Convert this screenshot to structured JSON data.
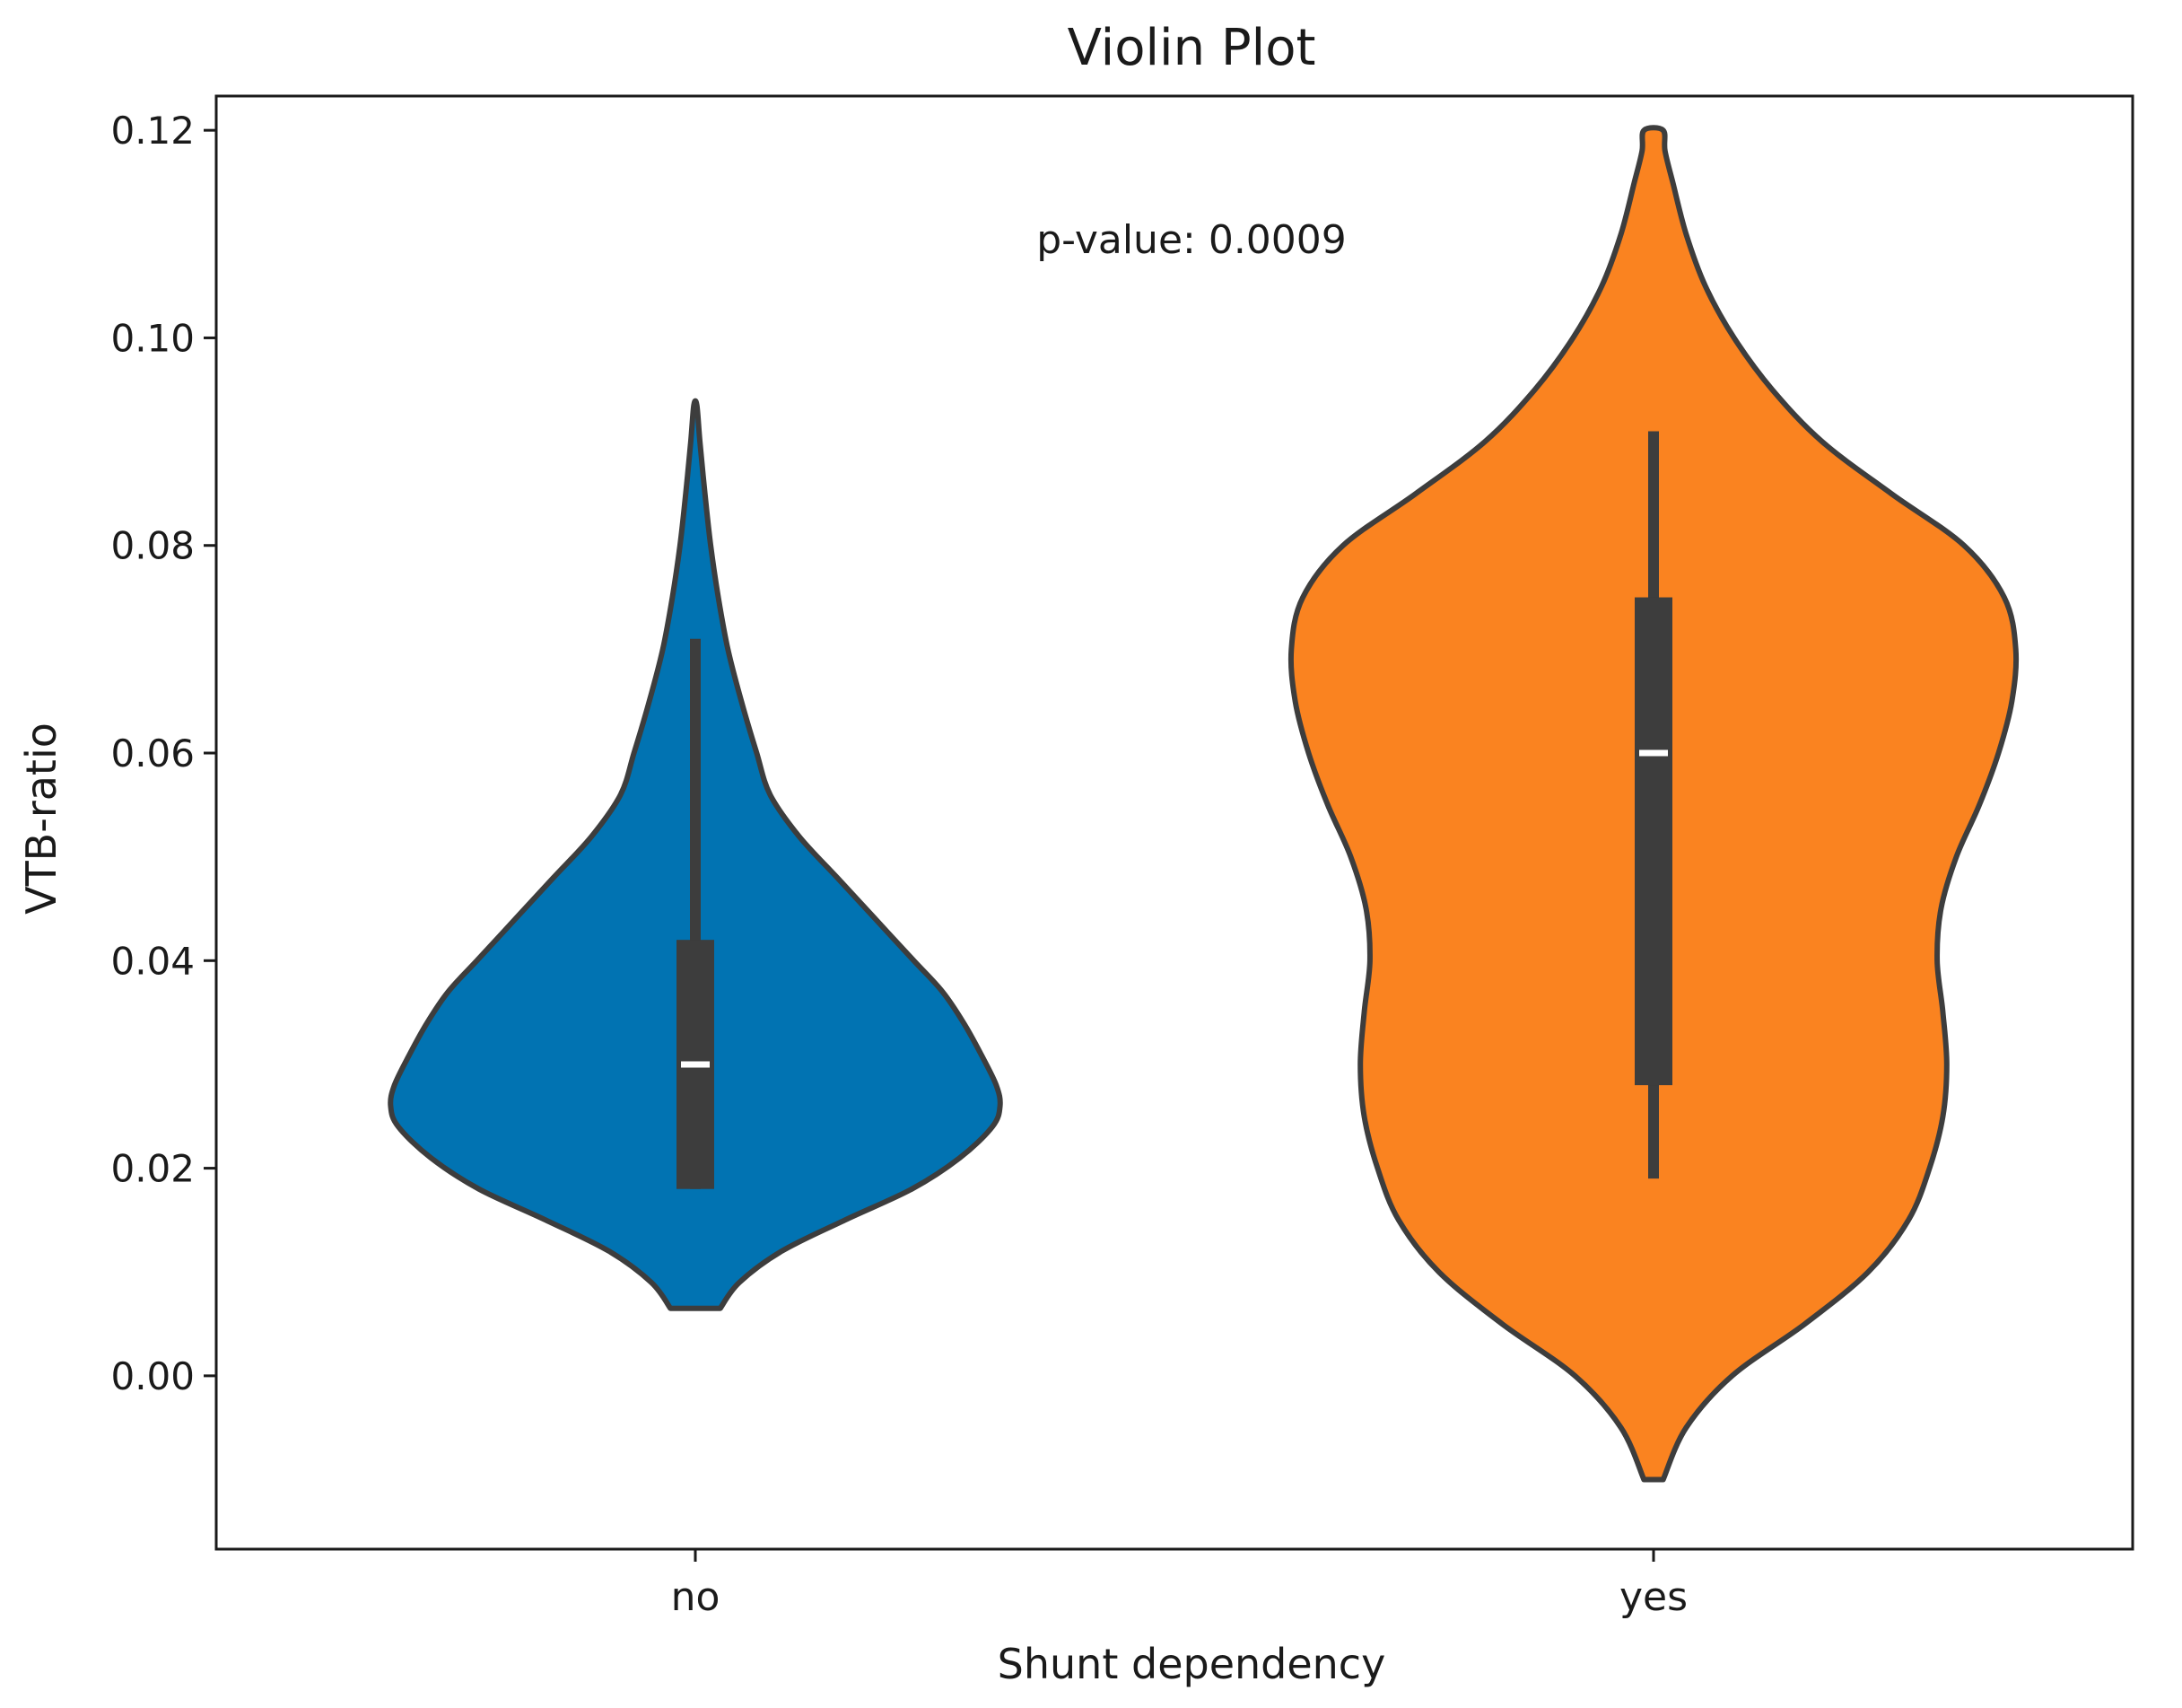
{
  "chart_data": {
    "type": "violin",
    "title": "Violin Plot",
    "xlabel": "Shunt dependency",
    "ylabel": "VTB-ratio",
    "annotation": "p-value: 0.0009",
    "ylim": [
      -0.0167,
      0.1233
    ],
    "yticks": [
      "0.00",
      "0.02",
      "0.04",
      "0.06",
      "0.08",
      "0.10",
      "0.12"
    ],
    "categories": [
      "no",
      "yes"
    ],
    "grid": false,
    "colors": {
      "no": "#0173b2",
      "yes": "#fa8320",
      "outline": "#3d3d3d",
      "median": "#ffffff"
    },
    "series": [
      {
        "category": "no",
        "min": 0.0065,
        "max": 0.0935,
        "q1": 0.018,
        "median": 0.03,
        "q3": 0.042,
        "whisker_low": 0.018,
        "whisker_high": 0.071,
        "density": [
          [
            0.0065,
            0.065
          ],
          [
            0.009,
            0.115
          ],
          [
            0.012,
            0.225
          ],
          [
            0.015,
            0.39
          ],
          [
            0.018,
            0.565
          ],
          [
            0.021,
            0.69
          ],
          [
            0.024,
            0.775
          ],
          [
            0.026,
            0.795
          ],
          [
            0.028,
            0.785
          ],
          [
            0.031,
            0.745
          ],
          [
            0.034,
            0.7
          ],
          [
            0.037,
            0.645
          ],
          [
            0.04,
            0.57
          ],
          [
            0.044,
            0.47
          ],
          [
            0.048,
            0.37
          ],
          [
            0.052,
            0.27
          ],
          [
            0.056,
            0.195
          ],
          [
            0.06,
            0.16
          ],
          [
            0.065,
            0.12
          ],
          [
            0.07,
            0.085
          ],
          [
            0.075,
            0.06
          ],
          [
            0.08,
            0.04
          ],
          [
            0.085,
            0.025
          ],
          [
            0.09,
            0.012
          ],
          [
            0.0935,
            0.004
          ]
        ]
      },
      {
        "category": "yes",
        "min": -0.01,
        "max": 0.12,
        "q1": 0.028,
        "median": 0.06,
        "q3": 0.075,
        "whisker_low": 0.019,
        "whisker_high": 0.091,
        "density": [
          [
            -0.01,
            0.025
          ],
          [
            -0.005,
            0.085
          ],
          [
            0.0,
            0.205
          ],
          [
            0.005,
            0.395
          ],
          [
            0.01,
            0.56
          ],
          [
            0.015,
            0.665
          ],
          [
            0.02,
            0.72
          ],
          [
            0.025,
            0.755
          ],
          [
            0.03,
            0.765
          ],
          [
            0.035,
            0.755
          ],
          [
            0.04,
            0.74
          ],
          [
            0.045,
            0.75
          ],
          [
            0.05,
            0.79
          ],
          [
            0.055,
            0.85
          ],
          [
            0.06,
            0.9
          ],
          [
            0.065,
            0.935
          ],
          [
            0.07,
            0.945
          ],
          [
            0.075,
            0.915
          ],
          [
            0.08,
            0.81
          ],
          [
            0.085,
            0.62
          ],
          [
            0.09,
            0.44
          ],
          [
            0.095,
            0.31
          ],
          [
            0.1,
            0.21
          ],
          [
            0.105,
            0.135
          ],
          [
            0.11,
            0.085
          ],
          [
            0.115,
            0.05
          ],
          [
            0.118,
            0.03
          ],
          [
            0.12,
            0.025
          ]
        ]
      }
    ]
  }
}
